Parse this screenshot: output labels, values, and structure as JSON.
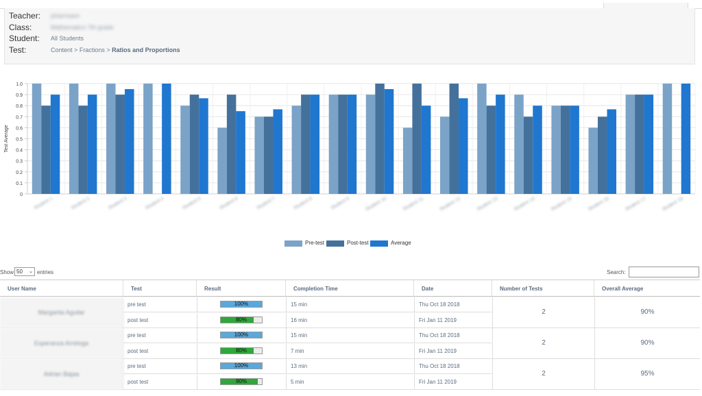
{
  "header": {
    "teacher_label": "Teacher:",
    "teacher_value": "jsharmaon",
    "class_label": "Class:",
    "class_value": "Mathematics 7th grade",
    "student_label": "Student:",
    "student_value": "All Students",
    "test_label": "Test:",
    "breadcrumb_1": "Content",
    "breadcrumb_sep": ">",
    "breadcrumb_2": "Fractions",
    "breadcrumb_current": "Ratios and Proportions"
  },
  "chart_data": {
    "type": "bar",
    "ylabel": "Test Average",
    "ylim": [
      0,
      1.0
    ],
    "yticks": [
      "0",
      "0.1",
      "0.2",
      "0.3",
      "0.4",
      "0.5",
      "0.6",
      "0.7",
      "0.8",
      "0.9",
      "1.0"
    ],
    "categories": [
      "Student 1",
      "Student 2",
      "Student 3",
      "Student 4",
      "Student 5",
      "Student 6",
      "Student 7",
      "Student 8",
      "Student 9",
      "Student 10",
      "Student 11",
      "Student 12",
      "Student 13",
      "Student 14",
      "Student 15",
      "Student 16",
      "Student 17",
      "Student 18"
    ],
    "series": [
      {
        "name": "Pre-test",
        "color": "#7ba3c8",
        "values": [
          1.0,
          1.0,
          1.0,
          1.0,
          0.8,
          0.6,
          0.7,
          0.8,
          0.9,
          0.9,
          0.6,
          0.7,
          1.0,
          0.9,
          0.8,
          0.6,
          0.9,
          1.0
        ]
      },
      {
        "name": "Post-test",
        "color": "#44719c",
        "values": [
          0.8,
          0.8,
          0.9,
          0,
          0.9,
          0.9,
          0.7,
          0.9,
          0.9,
          1.0,
          1.0,
          1.0,
          0.8,
          0.7,
          0.8,
          0.7,
          0.9,
          0
        ]
      },
      {
        "name": "Average",
        "color": "#1f77d0",
        "values": [
          0.9,
          0.9,
          0.95,
          1.0,
          0.867,
          0.75,
          0.767,
          0.9,
          0.9,
          0.95,
          0.8,
          0.867,
          0.9,
          0.8,
          0.8,
          0.767,
          0.9,
          1.0
        ]
      }
    ],
    "legend_position": "bottom",
    "grid": true
  },
  "table_controls": {
    "show_label": "Show",
    "entries_value": "50",
    "entries_label": "entries",
    "search_label": "Search:",
    "search_value": ""
  },
  "table": {
    "headers": [
      "User Name",
      "Test",
      "Result",
      "Completion Time",
      "Date",
      "Number of Tests",
      "Overall Average"
    ],
    "groups": [
      {
        "name": "Margarita Aguilar",
        "num_tests": "2",
        "overall": "90%",
        "rows": [
          {
            "test": "pre test",
            "result": "100%",
            "pct": 1.0,
            "color": "#5aa8dc",
            "time": "15 min",
            "date": "Thu Oct 18 2018"
          },
          {
            "test": "post test",
            "result": "80%",
            "pct": 0.8,
            "color": "#2ea83a",
            "time": "16 min",
            "date": "Fri Jan 11 2019"
          }
        ]
      },
      {
        "name": "Esperanza Arreloga",
        "num_tests": "2",
        "overall": "90%",
        "rows": [
          {
            "test": "pre test",
            "result": "100%",
            "pct": 1.0,
            "color": "#5aa8dc",
            "time": "15 min",
            "date": "Thu Oct 18 2018"
          },
          {
            "test": "post test",
            "result": "80%",
            "pct": 0.8,
            "color": "#2ea83a",
            "time": "7 min",
            "date": "Fri Jan 11 2019"
          }
        ]
      },
      {
        "name": "Adrian Bajaa",
        "num_tests": "2",
        "overall": "95%",
        "rows": [
          {
            "test": "pre test",
            "result": "100%",
            "pct": 1.0,
            "color": "#5aa8dc",
            "time": "13 min",
            "date": "Thu Oct 18 2018"
          },
          {
            "test": "post test",
            "result": "90%",
            "pct": 0.9,
            "color": "#2ea83a",
            "time": "5 min",
            "date": "Fri Jan 11 2019"
          }
        ]
      }
    ]
  }
}
